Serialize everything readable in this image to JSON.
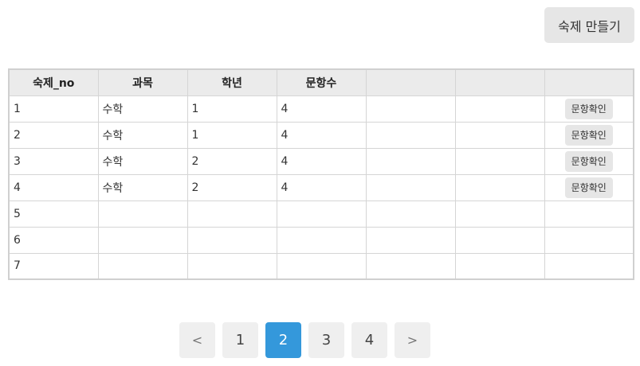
{
  "header": {
    "create_button_label": "숙제 만들기"
  },
  "table": {
    "columns": [
      "숙제_no",
      "과목",
      "학년",
      "문항수",
      "",
      "",
      ""
    ],
    "rows": [
      {
        "no": "1",
        "subject": "수학",
        "grade": "1",
        "count": "4",
        "action": "문항확인"
      },
      {
        "no": "2",
        "subject": "수학",
        "grade": "1",
        "count": "4",
        "action": "문항확인"
      },
      {
        "no": "3",
        "subject": "수학",
        "grade": "2",
        "count": "4",
        "action": "문항확인"
      },
      {
        "no": "4",
        "subject": "수학",
        "grade": "2",
        "count": "4",
        "action": "문항확인"
      },
      {
        "no": "5",
        "subject": "",
        "grade": "",
        "count": "",
        "action": ""
      },
      {
        "no": "6",
        "subject": "",
        "grade": "",
        "count": "",
        "action": ""
      },
      {
        "no": "7",
        "subject": "",
        "grade": "",
        "count": "",
        "action": ""
      }
    ]
  },
  "pagination": {
    "prev_label": "<",
    "next_label": ">",
    "pages": [
      "1",
      "2",
      "3",
      "4"
    ],
    "current_page": "2",
    "active_color": "#3498db"
  }
}
